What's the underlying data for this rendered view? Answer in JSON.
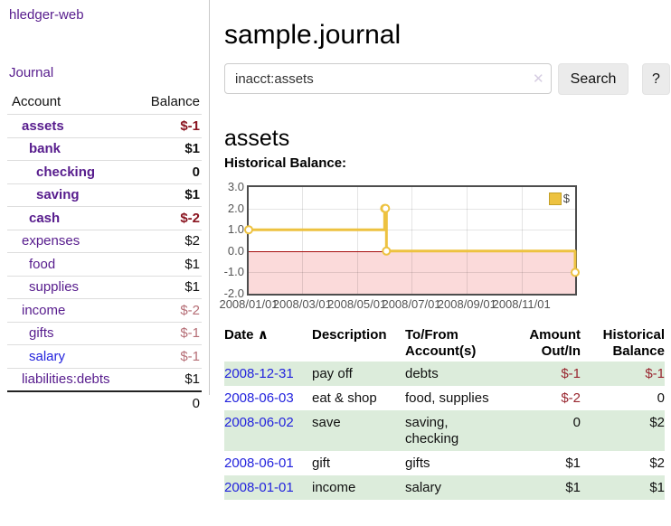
{
  "app": {
    "title": "hledger-web",
    "journal_label": "Journal"
  },
  "icons": {
    "clear_search": "✕",
    "sort_asc": "∧"
  },
  "colors": {
    "link_purple": "#571c8d",
    "link_blue": "#2323dd",
    "negative": "#992730",
    "negative_strong": "#8a1420",
    "negative_soft": "#b56d75",
    "row_stripe_green": "#dcecdb",
    "chart_line_gold": "#edc240",
    "chart_negative_pink": "#fbdada",
    "chart_zero_line_red": "#a60d0d"
  },
  "sidebar": {
    "col_account": "Account",
    "col_balance": "Balance",
    "accounts": [
      {
        "name": "assets",
        "depth": 1,
        "balance": "$-1",
        "bold": true,
        "link_color": "purple",
        "tone": "negstrong"
      },
      {
        "name": "bank",
        "depth": 2,
        "balance": "$1",
        "bold": true,
        "link_color": "purple",
        "tone": ""
      },
      {
        "name": "checking",
        "depth": 3,
        "balance": "0",
        "bold": true,
        "link_color": "purple",
        "tone": ""
      },
      {
        "name": "saving",
        "depth": 3,
        "balance": "$1",
        "bold": true,
        "link_color": "purple",
        "tone": ""
      },
      {
        "name": "cash",
        "depth": 2,
        "balance": "$-2",
        "bold": true,
        "link_color": "purple",
        "tone": "negstrong"
      },
      {
        "name": "expenses",
        "depth": 1,
        "balance": "$2",
        "bold": false,
        "link_color": "purple",
        "tone": ""
      },
      {
        "name": "food",
        "depth": 2,
        "balance": "$1",
        "bold": false,
        "link_color": "purple",
        "tone": ""
      },
      {
        "name": "supplies",
        "depth": 2,
        "balance": "$1",
        "bold": false,
        "link_color": "purple",
        "tone": ""
      },
      {
        "name": "income",
        "depth": 1,
        "balance": "$-2",
        "bold": false,
        "link_color": "purple",
        "tone": "negsoft"
      },
      {
        "name": "gifts",
        "depth": 2,
        "balance": "$-1",
        "bold": false,
        "link_color": "purple",
        "tone": "negsoft"
      },
      {
        "name": "salary",
        "depth": 2,
        "balance": "$-1",
        "bold": false,
        "link_color": "blue",
        "tone": "negsoft"
      },
      {
        "name": "liabilities:debts",
        "depth": 1,
        "balance": "$1",
        "bold": false,
        "link_color": "purple",
        "tone": ""
      }
    ],
    "total": "0"
  },
  "main": {
    "title": "sample.journal",
    "search": {
      "query": "inacct:assets",
      "button_label": "Search",
      "help_label": "?"
    },
    "account_heading": "assets"
  },
  "chart_data": {
    "type": "line",
    "title": "Historical Balance:",
    "legend_position": "top-right",
    "grid": true,
    "xlim": [
      "2008/01/01",
      "2008/12/31"
    ],
    "ylim": [
      -2,
      3
    ],
    "yticks": [
      "3.0",
      "2.0",
      "1.0",
      "0.0",
      "-1.0",
      "-2.0"
    ],
    "xticks": [
      "2008/01/01",
      "2008/03/01",
      "2008/05/01",
      "2008/07/01",
      "2008/09/01",
      "2008/11/01"
    ],
    "series": [
      {
        "name": "$",
        "color": "#edc240",
        "style": "steps-with-markers",
        "points": [
          [
            "2008/01/01",
            1
          ],
          [
            "2008/06/01",
            2
          ],
          [
            "2008/06/02",
            2
          ],
          [
            "2008/06/03",
            0
          ],
          [
            "2008/12/31",
            -1
          ]
        ]
      }
    ]
  },
  "register": {
    "headers": [
      {
        "key": "date",
        "line1": "Date",
        "sortable": true
      },
      {
        "key": "description",
        "line1": "Description"
      },
      {
        "key": "accounts",
        "line1": "To/From",
        "line2": "Account(s)"
      },
      {
        "key": "amount",
        "line1": "Amount",
        "line2": "Out/In",
        "align": "right"
      },
      {
        "key": "balance",
        "line1": "Historical",
        "line2": "Balance",
        "align": "right"
      }
    ],
    "rows": [
      {
        "date": "2008-12-31",
        "description": "pay off",
        "accounts": "debts",
        "amount": "$-1",
        "amount_neg": true,
        "balance": "$-1",
        "balance_neg": true
      },
      {
        "date": "2008-06-03",
        "description": "eat & shop",
        "accounts": "food, supplies",
        "amount": "$-2",
        "amount_neg": true,
        "balance": "0",
        "balance_neg": false
      },
      {
        "date": "2008-06-02",
        "description": "save",
        "accounts": "saving,\nchecking",
        "amount": "0",
        "amount_neg": false,
        "balance": "$2",
        "balance_neg": false
      },
      {
        "date": "2008-06-01",
        "description": "gift",
        "accounts": "gifts",
        "amount": "$1",
        "amount_neg": false,
        "balance": "$2",
        "balance_neg": false
      },
      {
        "date": "2008-01-01",
        "description": "income",
        "accounts": "salary",
        "amount": "$1",
        "amount_neg": false,
        "balance": "$1",
        "balance_neg": false
      }
    ]
  }
}
